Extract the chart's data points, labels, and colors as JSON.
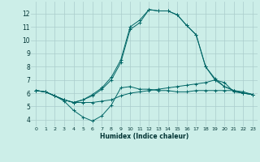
{
  "xlabel": "Humidex (Indice chaleur)",
  "bg_color": "#cceee8",
  "grid_color": "#aacccc",
  "line_color": "#006666",
  "xlim": [
    -0.5,
    23.5
  ],
  "ylim": [
    3.5,
    12.9
  ],
  "xticks": [
    0,
    1,
    2,
    3,
    4,
    5,
    6,
    7,
    8,
    9,
    10,
    11,
    12,
    13,
    14,
    15,
    16,
    17,
    18,
    19,
    20,
    21,
    22,
    23
  ],
  "yticks": [
    4,
    5,
    6,
    7,
    8,
    9,
    10,
    11,
    12
  ],
  "line1_y": [
    6.2,
    6.1,
    5.8,
    5.4,
    4.7,
    4.2,
    3.9,
    4.3,
    5.1,
    6.4,
    6.5,
    6.3,
    6.3,
    6.2,
    6.2,
    6.1,
    6.1,
    6.2,
    6.2,
    6.2,
    6.2,
    6.2,
    6.1,
    5.9
  ],
  "line2_y": [
    6.2,
    6.1,
    5.8,
    5.5,
    5.3,
    5.3,
    5.3,
    5.4,
    5.5,
    5.8,
    6.0,
    6.1,
    6.2,
    6.3,
    6.4,
    6.5,
    6.6,
    6.7,
    6.8,
    7.0,
    6.8,
    6.1,
    6.0,
    5.9
  ],
  "line3_y": [
    6.2,
    6.1,
    5.8,
    5.5,
    5.3,
    5.5,
    5.8,
    6.3,
    7.0,
    8.3,
    10.8,
    11.3,
    12.3,
    12.2,
    12.2,
    11.9,
    11.1,
    10.4,
    8.0,
    7.0,
    6.5,
    6.2,
    6.0,
    5.9
  ],
  "line4_y": [
    6.2,
    6.1,
    5.8,
    5.5,
    5.3,
    5.5,
    5.9,
    6.4,
    7.2,
    8.5,
    11.0,
    11.5,
    12.3,
    12.2,
    12.2,
    11.9,
    11.1,
    10.4,
    8.0,
    7.1,
    6.5,
    6.2,
    6.0,
    5.9
  ]
}
